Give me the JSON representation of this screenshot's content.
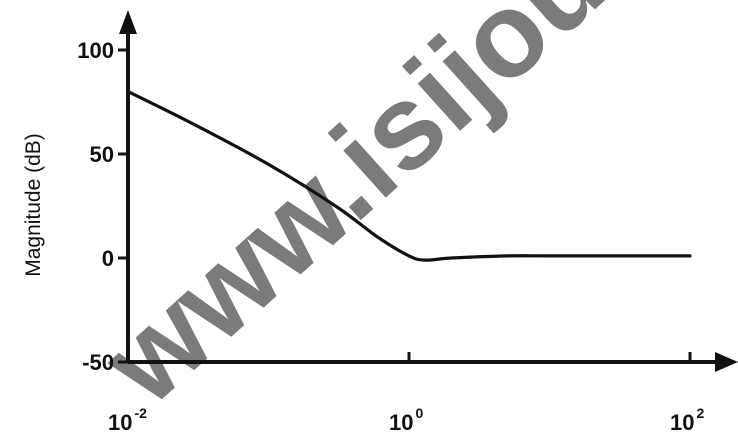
{
  "chart_data": {
    "type": "line",
    "title": "",
    "xlabel": "",
    "ylabel": "Magnitude (dB)",
    "xscale": "log",
    "xlim": [
      0.01,
      100
    ],
    "ylim": [
      -50,
      100
    ],
    "grid": false,
    "legend": "none",
    "y_ticks": [
      {
        "value": -50,
        "label": "-50"
      },
      {
        "value": 0,
        "label": "0"
      },
      {
        "value": 50,
        "label": "50"
      },
      {
        "value": 100,
        "label": "100"
      }
    ],
    "x_ticks": [
      {
        "value": 0.01,
        "base": "10",
        "exp": "-2"
      },
      {
        "value": 1,
        "base": "10",
        "exp": "0"
      },
      {
        "value": 100,
        "base": "10",
        "exp": "2"
      }
    ],
    "series": [
      {
        "x": [
          0.01,
          0.03,
          0.1,
          0.3,
          0.6,
          1.0,
          1.3,
          2.0,
          5.0,
          10,
          30,
          100
        ],
        "values": [
          80,
          64,
          45,
          25,
          10,
          1,
          -1,
          0,
          1,
          1,
          1,
          1
        ]
      }
    ],
    "line_color": "#111111"
  },
  "watermark": "www.isijournal"
}
